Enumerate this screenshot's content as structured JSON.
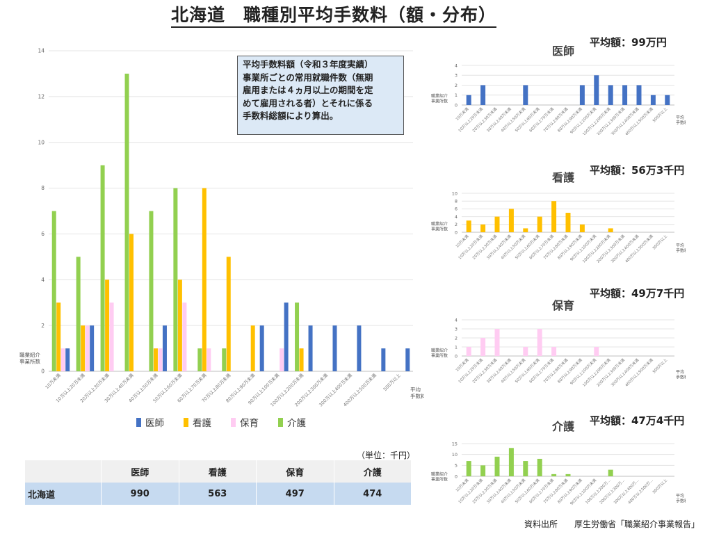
{
  "title": "北海道　職種別平均手数料（額・分布）",
  "note": {
    "lines": [
      "平均手数料額（令和３年度実績）",
      "事業所ごとの常用就職件数（無期",
      "雇用または４ヵ月以上の期間を定",
      "めて雇用される者）とそれに係る",
      "手数料総額により算出。"
    ]
  },
  "colors": {
    "医師": "#4472c4",
    "看護": "#ffc000",
    "保育": "#ffccf2",
    "介護": "#92d050"
  },
  "summary": {
    "unit_label": "（単位：千円）",
    "headers": [
      "",
      "医師",
      "看護",
      "保育",
      "介護"
    ],
    "row": [
      "北海道",
      "990",
      "563",
      "497",
      "474"
    ]
  },
  "mini": [
    {
      "title": "医師",
      "avg": "平均額：99万円"
    },
    {
      "title": "看護",
      "avg": "平均額：56万3千円"
    },
    {
      "title": "保育",
      "avg": "平均額：49万7千円"
    },
    {
      "title": "介護",
      "avg": "平均額：47万4千円"
    }
  ],
  "source": "資料出所　　厚生労働省「職業紹介事業報告」",
  "chart_data": [
    {
      "type": "bar",
      "xlabel": "平均手数料額",
      "ylabel": "職業紹介事業所数",
      "ylim": [
        0,
        14
      ],
      "yticks": [
        0,
        2,
        4,
        6,
        8,
        10,
        12,
        14
      ],
      "grid": true,
      "legend": "bottom",
      "categories": [
        "10万未満",
        "10万以上20万未満",
        "20万以上30万未満",
        "30万以上40万未満",
        "40万以上50万未満",
        "50万以上60万未満",
        "60万以上70万未満",
        "70万以上80万未満",
        "80万以上90万未満",
        "90万以上100万未満",
        "100万以上200万未満",
        "200万以上300万未満",
        "300万以上400万未満",
        "400万以上500万未満",
        "500万以上"
      ],
      "series": [
        {
          "name": "介護",
          "values": [
            7,
            5,
            9,
            13,
            7,
            8,
            1,
            1,
            0,
            0,
            3,
            0,
            0,
            0,
            0
          ]
        },
        {
          "name": "看護",
          "values": [
            3,
            2,
            4,
            6,
            1,
            4,
            8,
            5,
            2,
            0,
            1,
            0,
            0,
            0,
            0
          ]
        },
        {
          "name": "保育",
          "values": [
            1,
            2,
            3,
            0,
            1,
            3,
            1,
            0,
            0,
            1,
            0,
            0,
            0,
            0,
            0
          ]
        },
        {
          "name": "医師",
          "values": [
            1,
            2,
            0,
            0,
            2,
            0,
            0,
            0,
            2,
            3,
            2,
            2,
            2,
            1,
            1
          ]
        }
      ]
    },
    {
      "type": "bar",
      "title": "医師",
      "xlabel": "平均手数料額",
      "ylabel": "職業紹介事業所数",
      "ylim": [
        0,
        4
      ],
      "yticks": [
        0,
        1,
        2,
        3,
        4
      ],
      "grid": true,
      "categories": [
        "10万未満",
        "10万以上20万未満",
        "20万以上30万未満",
        "30万以上40万未満",
        "40万以上50万未満",
        "50万以上60万未満",
        "60万以上70万未満",
        "70万以上80万未満",
        "80万以上90万未満",
        "90万以上100万未満",
        "100万以上200万未満",
        "200万以上300万未満",
        "300万以上400万未満",
        "400万以上500万未満",
        "500万以上"
      ],
      "series": [
        {
          "name": "医師",
          "values": [
            1,
            2,
            0,
            0,
            2,
            0,
            0,
            0,
            2,
            3,
            2,
            2,
            2,
            1,
            1
          ]
        }
      ]
    },
    {
      "type": "bar",
      "title": "看護",
      "xlabel": "平均手数料額",
      "ylabel": "職業紹介事業所数",
      "ylim": [
        0,
        10
      ],
      "yticks": [
        0,
        2,
        4,
        6,
        8,
        10
      ],
      "grid": true,
      "categories": [
        "10万未満",
        "10万以上20万未満",
        "20万以上30万未満",
        "30万以上40万未満",
        "40万以上50万未満",
        "50万以上60万未満",
        "60万以上70万未満",
        "70万以上80万未満",
        "80万以上90万未満",
        "90万以上100万未満",
        "100万以上200万未満",
        "200万以上300万未満",
        "300万以上400万未満",
        "400万以上500万未満",
        "500万以上"
      ],
      "series": [
        {
          "name": "看護",
          "values": [
            3,
            2,
            4,
            6,
            1,
            4,
            8,
            5,
            2,
            0,
            1,
            0,
            0,
            0,
            0
          ]
        }
      ]
    },
    {
      "type": "bar",
      "title": "保育",
      "xlabel": "平均手数料額",
      "ylabel": "職業紹介事業所数",
      "ylim": [
        0,
        4
      ],
      "yticks": [
        0,
        1,
        2,
        3,
        4
      ],
      "grid": true,
      "categories": [
        "10万未満",
        "10万以上20万未満",
        "20万以上30万未満",
        "30万以上40万未満",
        "40万以上50万未満",
        "50万以上60万未満",
        "60万以上70万未満",
        "70万以上80万未満",
        "80万以上90万未満",
        "90万以上100万未満",
        "100万以上200万未満",
        "200万以上300万未満",
        "300万以上400万未満",
        "400万以上500万未満",
        "500万以上"
      ],
      "series": [
        {
          "name": "保育",
          "values": [
            1,
            2,
            3,
            0,
            1,
            3,
            1,
            0,
            0,
            1,
            0,
            0,
            0,
            0,
            0
          ]
        }
      ]
    },
    {
      "type": "bar",
      "title": "介護",
      "xlabel": "平均手数料額",
      "ylabel": "職業紹介事業所数",
      "ylim": [
        0,
        15
      ],
      "yticks": [
        0,
        5,
        10,
        15
      ],
      "grid": true,
      "categories": [
        "10万未満",
        "10万以上20万未満",
        "20万以上30万未満",
        "30万以上40万未満",
        "40万以上50万未満",
        "50万以上60万未満",
        "60万以上70万未満",
        "70万以上80万未満",
        "80万以上90万未満",
        "90万以上100万未満",
        "100万以上200万...",
        "200万以上300万...",
        "300万以上400万...",
        "400万以上500万...",
        "500万以上"
      ],
      "series": [
        {
          "name": "介護",
          "values": [
            7,
            5,
            9,
            13,
            7,
            8,
            1,
            1,
            0,
            0,
            3,
            0,
            0,
            0,
            0
          ]
        }
      ]
    }
  ]
}
